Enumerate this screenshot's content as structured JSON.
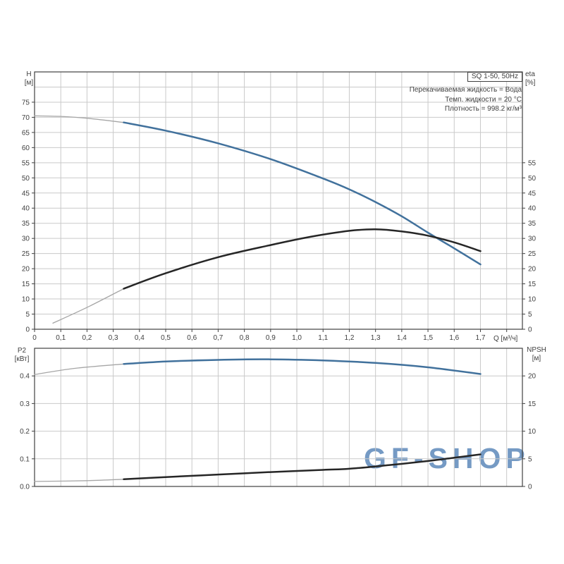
{
  "page": {
    "background": "#ffffff"
  },
  "watermark": {
    "text": "GF-SHOP",
    "color": "#5d89ba"
  },
  "title_box": {
    "label": "SQ 1-50, 50Hz"
  },
  "annotation": {
    "lines": [
      "Перекачиваемая жидкость = Вода",
      "Темп. жидкости = 20 °C",
      "Плотность = 998.2 кг/м³"
    ]
  },
  "axis_titles": {
    "h": [
      "H",
      "[м]"
    ],
    "eta": [
      "eta",
      "[%]"
    ],
    "q": "Q [м³/ч]",
    "p2": [
      "P2",
      "[кВт]"
    ],
    "npsh": [
      "NPSH",
      "[м]"
    ]
  },
  "colors": {
    "grid": "#c9c9c9",
    "axis": "#404040",
    "text": "#404040",
    "blue_curve": "#41719c",
    "black_curve": "#262626",
    "thin_segment": "#a6a6a6",
    "watermark": "#5d89ba"
  },
  "chart_data": [
    {
      "type": "line",
      "title": "SQ 1-50, 50Hz",
      "xlabel": "Q [м³/ч]",
      "ylabel_left": "H [м]",
      "ylabel_right": "eta [%]",
      "xlim": [
        0,
        1.86
      ],
      "ylim_left": [
        0,
        85
      ],
      "ylim_right": [
        0,
        85
      ],
      "x_grid_step": 0.1,
      "y_grid_step": 5,
      "grid": true,
      "x_ticks": [
        {
          "v": 0,
          "label": "0"
        },
        {
          "v": 0.1,
          "label": "0,1"
        },
        {
          "v": 0.2,
          "label": "0,2"
        },
        {
          "v": 0.3,
          "label": "0,3"
        },
        {
          "v": 0.4,
          "label": "0,4"
        },
        {
          "v": 0.5,
          "label": "0,5"
        },
        {
          "v": 0.6,
          "label": "0,6"
        },
        {
          "v": 0.7,
          "label": "0,7"
        },
        {
          "v": 0.8,
          "label": "0,8"
        },
        {
          "v": 0.9,
          "label": "0,9"
        },
        {
          "v": 1.0,
          "label": "1,0"
        },
        {
          "v": 1.1,
          "label": "1,1"
        },
        {
          "v": 1.2,
          "label": "1,2"
        },
        {
          "v": 1.3,
          "label": "1,3"
        },
        {
          "v": 1.4,
          "label": "1,4"
        },
        {
          "v": 1.5,
          "label": "1,5"
        },
        {
          "v": 1.6,
          "label": "1,6"
        },
        {
          "v": 1.7,
          "label": "1,7"
        }
      ],
      "y_ticks_left": [
        {
          "v": 0,
          "label": "0"
        },
        {
          "v": 5,
          "label": "5"
        },
        {
          "v": 10,
          "label": "10"
        },
        {
          "v": 15,
          "label": "15"
        },
        {
          "v": 20,
          "label": "20"
        },
        {
          "v": 25,
          "label": "25"
        },
        {
          "v": 30,
          "label": "30"
        },
        {
          "v": 35,
          "label": "35"
        },
        {
          "v": 40,
          "label": "40"
        },
        {
          "v": 45,
          "label": "45"
        },
        {
          "v": 50,
          "label": "50"
        },
        {
          "v": 55,
          "label": "55"
        },
        {
          "v": 60,
          "label": "60"
        },
        {
          "v": 65,
          "label": "65"
        },
        {
          "v": 70,
          "label": "70"
        },
        {
          "v": 75,
          "label": "75"
        }
      ],
      "y_ticks_right": [
        {
          "v": 0,
          "label": "0"
        },
        {
          "v": 5,
          "label": "5"
        },
        {
          "v": 10,
          "label": "10"
        },
        {
          "v": 15,
          "label": "15"
        },
        {
          "v": 20,
          "label": "20"
        },
        {
          "v": 25,
          "label": "25"
        },
        {
          "v": 30,
          "label": "30"
        },
        {
          "v": 35,
          "label": "35"
        },
        {
          "v": 40,
          "label": "40"
        },
        {
          "v": 45,
          "label": "45"
        },
        {
          "v": 50,
          "label": "50"
        },
        {
          "v": 55,
          "label": "55"
        }
      ],
      "series": [
        {
          "name": "head-curve",
          "axis": "left",
          "color": "#41719c",
          "thin_until": 0.34,
          "thin_color": "#a6a6a6",
          "points": [
            [
              0,
              70.5
            ],
            [
              0.1,
              70.3
            ],
            [
              0.2,
              69.7
            ],
            [
              0.34,
              68.3
            ],
            [
              0.5,
              65.6
            ],
            [
              0.7,
              61.4
            ],
            [
              0.9,
              56.2
            ],
            [
              1.1,
              49.8
            ],
            [
              1.2,
              46.2
            ],
            [
              1.3,
              42.0
            ],
            [
              1.4,
              37.3
            ],
            [
              1.5,
              31.9
            ],
            [
              1.6,
              26.7
            ],
            [
              1.7,
              21.4
            ]
          ]
        },
        {
          "name": "eta-curve",
          "axis": "right",
          "color": "#262626",
          "thin_until": 0.34,
          "thin_color": "#a6a6a6",
          "points": [
            [
              0.07,
              2.0
            ],
            [
              0.2,
              7.2
            ],
            [
              0.34,
              13.4
            ],
            [
              0.5,
              18.5
            ],
            [
              0.7,
              23.8
            ],
            [
              0.9,
              27.8
            ],
            [
              1.05,
              30.5
            ],
            [
              1.2,
              32.5
            ],
            [
              1.3,
              33.0
            ],
            [
              1.4,
              32.3
            ],
            [
              1.5,
              30.9
            ],
            [
              1.6,
              28.7
            ],
            [
              1.7,
              25.8
            ]
          ]
        }
      ]
    },
    {
      "type": "line",
      "title": "",
      "xlabel": "Q [м³/ч]",
      "ylabel_left": "P2 [кВт]",
      "ylabel_right": "NPSH [м]",
      "xlim": [
        0,
        1.86
      ],
      "ylim_left": [
        0,
        0.5
      ],
      "ylim_right": [
        0,
        25
      ],
      "x_grid_step": 0.1,
      "y_grid_step": 0.1,
      "grid": true,
      "x_ticks": [],
      "y_ticks_left": [
        {
          "v": 0,
          "label": "0.0"
        },
        {
          "v": 0.1,
          "label": "0.1"
        },
        {
          "v": 0.2,
          "label": "0.2"
        },
        {
          "v": 0.3,
          "label": "0.3"
        },
        {
          "v": 0.4,
          "label": "0.4"
        }
      ],
      "y_ticks_right": [
        {
          "v": 0,
          "label": "0"
        },
        {
          "v": 5,
          "label": "5"
        },
        {
          "v": 10,
          "label": "10"
        },
        {
          "v": 15,
          "label": "15"
        },
        {
          "v": 20,
          "label": "20"
        }
      ],
      "series": [
        {
          "name": "p2-curve",
          "axis": "left",
          "color": "#41719c",
          "thin_until": 0.34,
          "thin_color": "#a6a6a6",
          "points": [
            [
              0,
              0.405
            ],
            [
              0.15,
              0.427
            ],
            [
              0.34,
              0.443
            ],
            [
              0.5,
              0.452
            ],
            [
              0.7,
              0.458
            ],
            [
              0.9,
              0.46
            ],
            [
              1.1,
              0.456
            ],
            [
              1.3,
              0.447
            ],
            [
              1.5,
              0.431
            ],
            [
              1.7,
              0.407
            ]
          ]
        },
        {
          "name": "npsh-curve",
          "axis": "right",
          "color": "#262626",
          "thin_until": 0.34,
          "thin_color": "#a6a6a6",
          "points": [
            [
              0,
              0.9
            ],
            [
              0.2,
              1.05
            ],
            [
              0.34,
              1.3
            ],
            [
              0.5,
              1.7
            ],
            [
              0.7,
              2.15
            ],
            [
              0.9,
              2.6
            ],
            [
              1.1,
              3.0
            ],
            [
              1.2,
              3.2
            ],
            [
              1.35,
              3.85
            ],
            [
              1.5,
              4.6
            ],
            [
              1.6,
              5.2
            ],
            [
              1.7,
              5.8
            ]
          ]
        }
      ]
    }
  ]
}
